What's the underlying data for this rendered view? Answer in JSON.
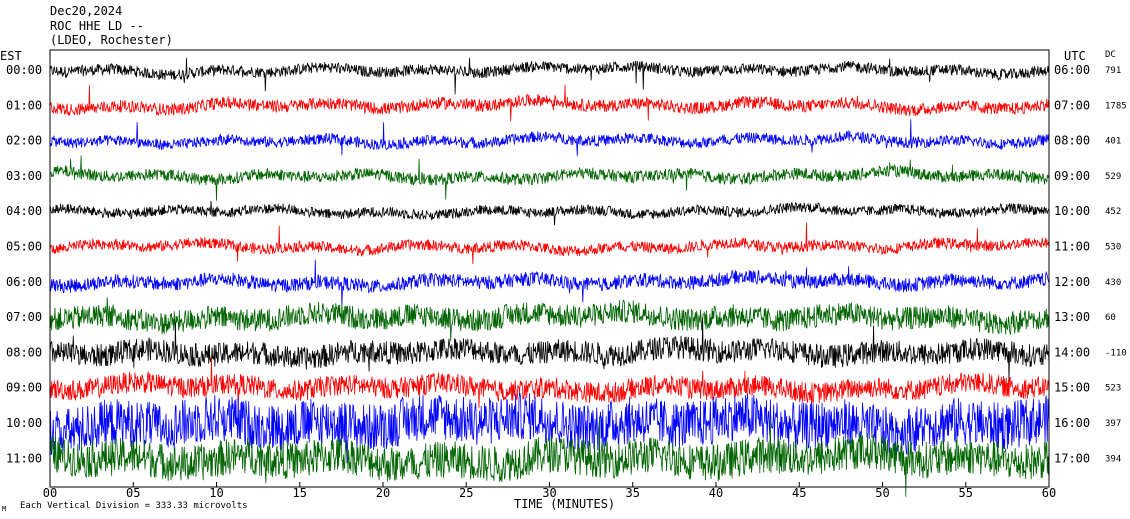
{
  "header": {
    "date": "Dec20,2024",
    "station": "ROC HHE LD --",
    "network": "(LDEO, Rochester)"
  },
  "labels": {
    "left_tz": "EST",
    "right_tz": "UTC",
    "dc_header": "DC",
    "xlabel": "TIME (MINUTES)",
    "footnote": "Each Vertical Division = 333.33 microvolts",
    "corner_mark": "M"
  },
  "colors": {
    "black": "#000000",
    "red": "#ff0000",
    "blue": "#0000ff",
    "green": "#006400"
  },
  "chart_data": {
    "type": "line",
    "title": "ROC HHE LD --",
    "xlabel": "TIME (MINUTES)",
    "xlim": [
      0,
      60
    ],
    "x_ticks": [
      "00",
      "05",
      "10",
      "15",
      "20",
      "25",
      "30",
      "35",
      "40",
      "45",
      "50",
      "55",
      "60"
    ],
    "color_cycle": [
      "black",
      "red",
      "blue",
      "green"
    ],
    "rows": [
      {
        "est": "00:00",
        "utc": "06:00",
        "dc": "791",
        "color": "black",
        "amplitude": 0.45,
        "noise": 0.35
      },
      {
        "est": "01:00",
        "utc": "07:00",
        "dc": "1785",
        "color": "red",
        "amplitude": 0.5,
        "noise": 0.35
      },
      {
        "est": "02:00",
        "utc": "08:00",
        "dc": "401",
        "color": "blue",
        "amplitude": 0.45,
        "noise": 0.35
      },
      {
        "est": "03:00",
        "utc": "09:00",
        "dc": "529",
        "color": "green",
        "amplitude": 0.45,
        "noise": 0.38
      },
      {
        "est": "04:00",
        "utc": "10:00",
        "dc": "452",
        "color": "black",
        "amplitude": 0.42,
        "noise": 0.35
      },
      {
        "est": "05:00",
        "utc": "11:00",
        "dc": "530",
        "color": "red",
        "amplitude": 0.45,
        "noise": 0.35
      },
      {
        "est": "06:00",
        "utc": "12:00",
        "dc": "430",
        "color": "blue",
        "amplitude": 0.5,
        "noise": 0.4
      },
      {
        "est": "07:00",
        "utc": "13:00",
        "dc": "60",
        "color": "green",
        "amplitude": 0.6,
        "noise": 0.55
      },
      {
        "est": "08:00",
        "utc": "14:00",
        "dc": "-110",
        "color": "black",
        "amplitude": 0.6,
        "noise": 0.55
      },
      {
        "est": "09:00",
        "utc": "15:00",
        "dc": "523",
        "color": "red",
        "amplitude": 0.6,
        "noise": 0.5
      },
      {
        "est": "10:00",
        "utc": "16:00",
        "dc": "397",
        "color": "blue",
        "amplitude": 0.85,
        "noise": 0.8
      },
      {
        "est": "11:00",
        "utc": "17:00",
        "dc": "394",
        "color": "green",
        "amplitude": 0.75,
        "noise": 0.7
      }
    ]
  }
}
